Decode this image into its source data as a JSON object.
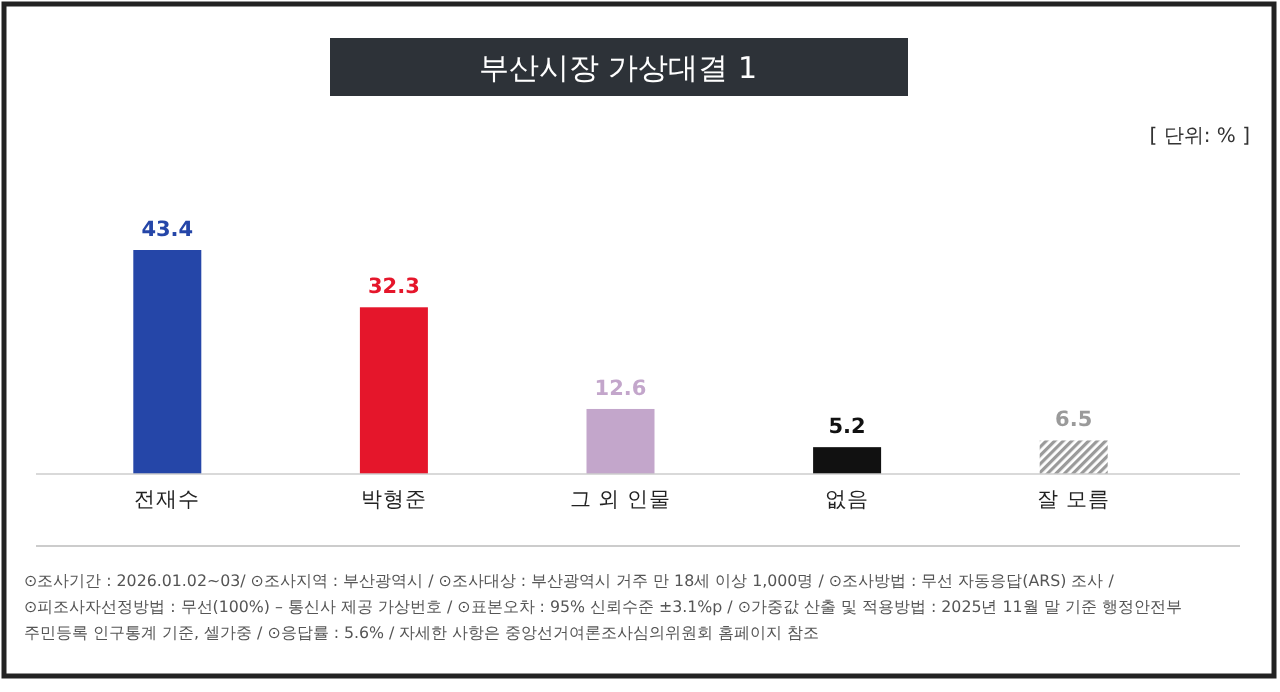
{
  "chart_data": {
    "type": "bar",
    "title": "부산시장 가상대결 1",
    "categories": [
      "전재수",
      "박형준",
      "그 외 인물",
      "없음",
      "잘 모름"
    ],
    "values": [
      43.4,
      32.3,
      12.6,
      5.2,
      6.5
    ],
    "colors": [
      "#2546a8",
      "#e5162b",
      "#c3a6cb",
      "#111111",
      "#9a9a9a"
    ],
    "data_labels": true,
    "annotations": [
      "[ 단위: % ]",
      "⊙조사기간 : 2026.01.02~03/ ⊙조사지역 : 부산광역시 / ⊙조사대상 : 부산광역시 거주 만 18세 이상 1,000명 / ⊙조사방법 : 무선 자동응답(ARS) 조사 /",
      "⊙피조사자선정방법 : 무선(100%) – 통신사 제공 가상번호 / ⊙표본오차 : 95% 신뢰수준 ±3.1%p / ⊙가중값 산출 및 적용방법 : 2025년 11월 말 기준 행정안전부",
      "주민등록 인구통계 기준, 셀가중 / ⊙응답률 : 5.6% / 자세한 사항은 중앙선거여론조사심의위원회 홈페이지 참조"
    ]
  }
}
